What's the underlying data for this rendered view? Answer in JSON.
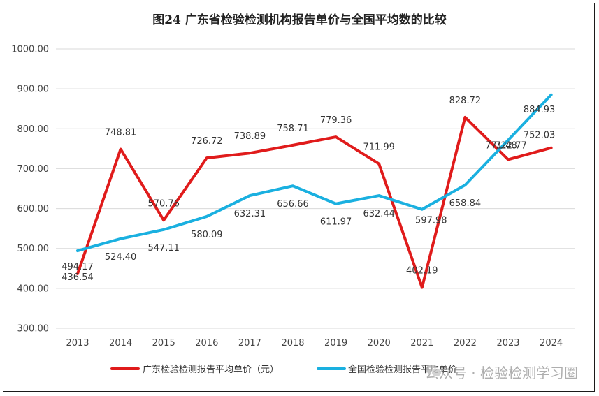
{
  "chart_data": {
    "type": "line",
    "title": "图24  广东省检验检测机构报告单价与全国平均数的比较",
    "categories": [
      "2013",
      "2014",
      "2015",
      "2016",
      "2017",
      "2018",
      "2019",
      "2020",
      "2021",
      "2022",
      "2023",
      "2024"
    ],
    "ylim": [
      300,
      1000
    ],
    "yticks": [
      "300.00",
      "400.00",
      "500.00",
      "600.00",
      "700.00",
      "800.00",
      "900.00",
      "1000.00"
    ],
    "grid": true,
    "legend_position": "bottom",
    "series": [
      {
        "name": "广东检验检测报告平均单价（元）",
        "color": "#e01b1b",
        "values": [
          436.54,
          748.81,
          570.76,
          726.72,
          738.89,
          758.71,
          779.36,
          711.99,
          402.19,
          828.72,
          722.77,
          752.03
        ],
        "labels": [
          "436.54",
          "748.81",
          "570.76",
          "726.72",
          "738.89",
          "758.71",
          "779.36",
          "711.99",
          "402.19",
          "828.72",
          "722.77",
          "752.03"
        ]
      },
      {
        "name": "全国检验检测报告平均单价",
        "color": "#1ab0e0",
        "values": [
          494.17,
          524.4,
          547.11,
          580.09,
          632.31,
          656.66,
          611.97,
          632.44,
          597.98,
          658.84,
          771.48,
          884.93
        ],
        "labels": [
          "494.17",
          "524.40",
          "547.11",
          "580.09",
          "632.31",
          "656.66",
          "611.97",
          "632.44",
          "597.98",
          "658.84",
          "771.48",
          "884.93"
        ]
      }
    ]
  },
  "watermark": {
    "text": "公众号 · 检验检测学习圈",
    "icon": "wechat-icon"
  }
}
